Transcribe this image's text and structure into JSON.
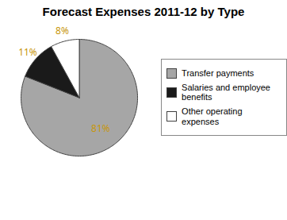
{
  "chart_data": {
    "type": "pie",
    "title": "Forecast Expenses 2011-12 by Type",
    "categories": [
      "Transfer payments",
      "Salaries and employee\nbenefits",
      "Other operating expenses"
    ],
    "values": [
      81,
      11,
      8
    ],
    "value_labels": [
      "81%",
      "11%",
      "8%"
    ],
    "colors": [
      "#a6a6a6",
      "#1a1a1a",
      "#ffffff"
    ],
    "data_labels": true,
    "legend": "right"
  }
}
